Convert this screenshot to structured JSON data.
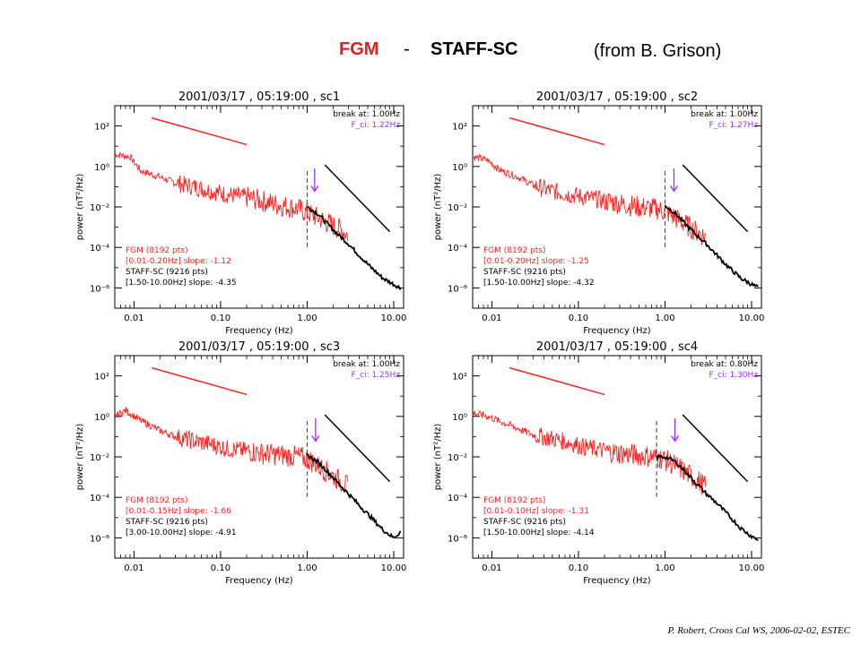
{
  "header": {
    "fgm": "FGM",
    "dash": "-",
    "staff": "STAFF-SC",
    "credit": "(from B. Grison)"
  },
  "footer": "P. Robert, Croos Cal WS, 2006-02-02, ESTEC",
  "colors": {
    "fgm": "#ff2020",
    "staff": "#000000",
    "fci": "#9b30ff"
  },
  "chart_data": [
    {
      "type": "line",
      "title": "2001/03/17 ,  05:19:00 ,  sc1",
      "xlabel": "Frequency (Hz)",
      "ylabel": "power (nT²/Hz)",
      "xscale": "log",
      "yscale": "log",
      "xlim": [
        0.006,
        13
      ],
      "ylim": [
        1e-07,
        1000.0
      ],
      "x_ticks": [
        "0.01",
        "0.10",
        "1.00",
        "10.00"
      ],
      "y_ticks": [
        "10²",
        "10⁰",
        "10⁻²",
        "10⁻⁴",
        "10⁻⁶"
      ],
      "break_label": "break at:",
      "break_value": "1.00Hz",
      "break_hz": 1.0,
      "fci_label": "F_ci:",
      "fci_value": "1.22Hz",
      "fci_hz": 1.22,
      "legend": [
        "FGM (8192 pts)",
        "[0.01-0.20Hz] slope: -1.12",
        "STAFF-SC (9216 pts)",
        "[1.50-10.00Hz] slope: -4.35"
      ],
      "series": [
        {
          "name": "FGM (8192 pts)",
          "color": "#ff2020",
          "x": [
            0.006,
            0.009,
            0.012,
            0.02,
            0.03,
            0.05,
            0.08,
            0.12,
            0.2,
            0.3,
            0.5,
            0.8,
            1.0,
            1.3,
            1.8,
            2.5,
            3.0
          ],
          "y": [
            4,
            3,
            0.6,
            0.3,
            0.15,
            0.1,
            0.06,
            0.04,
            0.03,
            0.02,
            0.012,
            0.008,
            0.005,
            0.003,
            0.0015,
            0.0007,
            0.0004
          ]
        },
        {
          "name": "STAFF-SC (9216 pts)",
          "color": "#000000",
          "x": [
            1.0,
            1.3,
            1.7,
            2.2,
            3.0,
            4.0,
            5.5,
            7.5,
            10.0,
            12.0
          ],
          "y": [
            0.01,
            0.005,
            0.0015,
            0.0005,
            0.00015,
            4e-05,
            1e-05,
            3e-06,
            1.5e-06,
            1e-06
          ]
        }
      ]
    },
    {
      "type": "line",
      "title": "2001/03/17 ,  05:19:00 ,  sc2",
      "xlabel": "Frequency (Hz)",
      "ylabel": "power (nT²/Hz)",
      "xscale": "log",
      "yscale": "log",
      "xlim": [
        0.006,
        13
      ],
      "ylim": [
        1e-07,
        1000.0
      ],
      "x_ticks": [
        "0.01",
        "0.10",
        "1.00",
        "10.00"
      ],
      "y_ticks": [
        "10²",
        "10⁰",
        "10⁻²",
        "10⁻⁴",
        "10⁻⁶"
      ],
      "break_label": "break at:",
      "break_value": "1.00Hz",
      "break_hz": 1.0,
      "fci_label": "F_ci:",
      "fci_value": "1.27Hz",
      "fci_hz": 1.27,
      "legend": [
        "FGM (8192 pts)",
        "[0.01-0.20Hz] slope: -1.25",
        "STAFF-SC (9216 pts)",
        "[1.50-10.00Hz] slope: -4.32"
      ],
      "series": [
        {
          "name": "FGM (8192 pts)",
          "color": "#ff2020",
          "x": [
            0.006,
            0.009,
            0.012,
            0.02,
            0.03,
            0.05,
            0.08,
            0.12,
            0.2,
            0.3,
            0.5,
            0.8,
            1.0,
            1.3,
            1.8,
            2.5,
            3.0
          ],
          "y": [
            3,
            2,
            0.7,
            0.3,
            0.12,
            0.06,
            0.04,
            0.03,
            0.02,
            0.015,
            0.01,
            0.008,
            0.006,
            0.003,
            0.0012,
            0.0005,
            0.0003
          ]
        },
        {
          "name": "STAFF-SC (9216 pts)",
          "color": "#000000",
          "x": [
            1.0,
            1.3,
            1.7,
            2.2,
            3.0,
            4.0,
            5.5,
            7.5,
            10.0,
            12.0
          ],
          "y": [
            0.012,
            0.005,
            0.0015,
            0.0005,
            0.00015,
            4e-05,
            1e-05,
            3e-06,
            1.5e-06,
            1e-06
          ]
        }
      ]
    },
    {
      "type": "line",
      "title": "2001/03/17 ,  05:19:00 ,  sc3",
      "xlabel": "Frequency (Hz)",
      "ylabel": "power (nT²/Hz)",
      "xscale": "log",
      "yscale": "log",
      "xlim": [
        0.006,
        13
      ],
      "ylim": [
        1e-07,
        1000.0
      ],
      "x_ticks": [
        "0.01",
        "0.10",
        "1.00",
        "10.00"
      ],
      "y_ticks": [
        "10²",
        "10⁰",
        "10⁻²",
        "10⁻⁴",
        "10⁻⁶"
      ],
      "break_label": "break at:",
      "break_value": "1.00Hz",
      "break_hz": 1.0,
      "fci_label": "F_ci:",
      "fci_value": "1.25Hz",
      "fci_hz": 1.25,
      "legend": [
        "FGM (8192 pts)",
        "[0.01-0.15Hz] slope: -1.66",
        "STAFF-SC (9216 pts)",
        "[3.00-10.00Hz] slope: -4.91"
      ],
      "series": [
        {
          "name": "FGM (8192 pts)",
          "color": "#ff2020",
          "x": [
            0.006,
            0.008,
            0.012,
            0.02,
            0.03,
            0.05,
            0.08,
            0.12,
            0.2,
            0.3,
            0.5,
            0.8,
            1.0,
            1.3,
            1.8,
            2.5,
            3.0
          ],
          "y": [
            1,
            2,
            0.6,
            0.2,
            0.1,
            0.06,
            0.04,
            0.025,
            0.02,
            0.015,
            0.012,
            0.01,
            0.008,
            0.004,
            0.0015,
            0.0006,
            0.0003
          ]
        },
        {
          "name": "STAFF-SC (9216 pts)",
          "color": "#000000",
          "x": [
            1.0,
            1.3,
            1.7,
            2.2,
            3.0,
            4.0,
            5.5,
            7.5,
            10.0,
            12.0
          ],
          "y": [
            0.012,
            0.006,
            0.002,
            0.0006,
            0.00015,
            4e-05,
            1e-05,
            2.5e-06,
            1e-06,
            2e-06
          ]
        }
      ]
    },
    {
      "type": "line",
      "title": "2001/03/17 ,  05:19:00 ,  sc4",
      "xlabel": "Frequency (Hz)",
      "ylabel": "power (nT²/Hz)",
      "xscale": "log",
      "yscale": "log",
      "xlim": [
        0.006,
        13
      ],
      "ylim": [
        1e-07,
        1000.0
      ],
      "x_ticks": [
        "0.01",
        "0.10",
        "1.00",
        "10.00"
      ],
      "y_ticks": [
        "10²",
        "10⁰",
        "10⁻²",
        "10⁻⁴",
        "10⁻⁶"
      ],
      "break_label": "break at:",
      "break_value": "0.80Hz",
      "break_hz": 0.8,
      "fci_label": "F_ci:",
      "fci_value": "1.30Hz",
      "fci_hz": 1.3,
      "legend": [
        "FGM (8192 pts)",
        "[0.01-0.10Hz] slope: -1.31",
        "STAFF-SC (9216 pts)",
        "[1.50-10.00Hz] slope: -4.14"
      ],
      "series": [
        {
          "name": "FGM (8192 pts)",
          "color": "#ff2020",
          "x": [
            0.006,
            0.009,
            0.012,
            0.02,
            0.03,
            0.05,
            0.08,
            0.12,
            0.2,
            0.3,
            0.5,
            0.8,
            1.0,
            1.3,
            1.8,
            2.5,
            3.0
          ],
          "y": [
            1.5,
            1.0,
            0.6,
            0.25,
            0.12,
            0.08,
            0.05,
            0.03,
            0.02,
            0.015,
            0.012,
            0.01,
            0.007,
            0.004,
            0.0015,
            0.0006,
            0.0003
          ]
        },
        {
          "name": "STAFF-SC (9216 pts)",
          "color": "#000000",
          "x": [
            0.8,
            1.0,
            1.3,
            1.7,
            2.2,
            3.0,
            4.0,
            5.5,
            7.5,
            10.0,
            12.0
          ],
          "y": [
            0.01,
            0.01,
            0.006,
            0.002,
            0.0006,
            0.00015,
            5e-05,
            1.2e-05,
            3e-06,
            1.2e-06,
            8e-07
          ]
        }
      ]
    }
  ]
}
